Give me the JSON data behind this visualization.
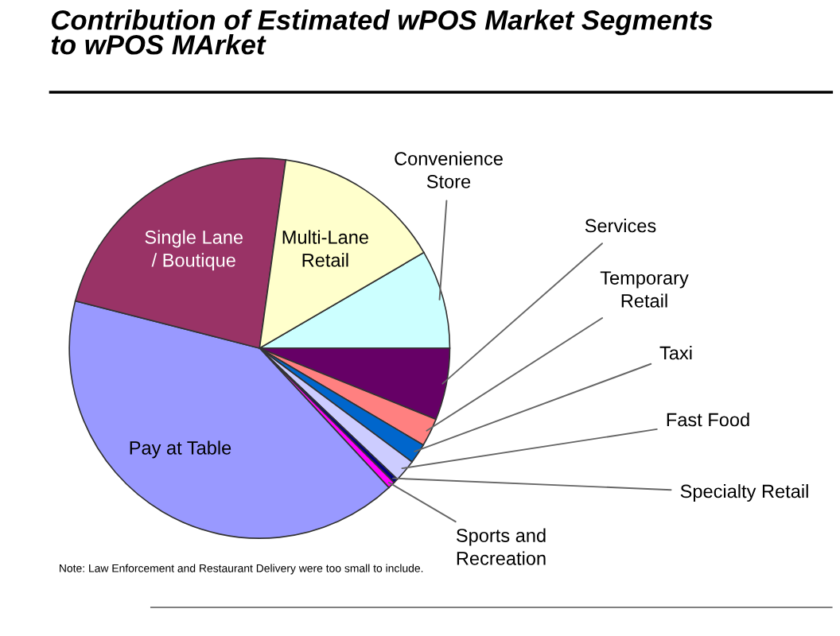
{
  "chart_data": {
    "type": "pie",
    "title": "Contribution of Estimated wPOS Market Segments\nto wPOS MArket",
    "categories": [
      "Convenience\nStore",
      "Services",
      "Temporary\nRetail",
      "Taxi",
      "Fast Food",
      "Specialty Retail",
      "Sports and\nRecreation",
      "Pay at Table",
      "Single Lane\n/ Boutique",
      "Multi-Lane\nRetail"
    ],
    "values": [
      8.4,
      6.1,
      2.4,
      1.7,
      1.9,
      0.4,
      0.6,
      40.9,
      23.2,
      14.4
    ],
    "colors": [
      "#ccffff",
      "#660066",
      "#ff8080",
      "#0066cc",
      "#ccccff",
      "#000080",
      "#ff00ff",
      "#9999ff",
      "#993366",
      "#ffffcc"
    ],
    "legend": false,
    "annotations": [
      "Note: Law Enforcement and Restaurant Delivery were too small to include."
    ]
  }
}
